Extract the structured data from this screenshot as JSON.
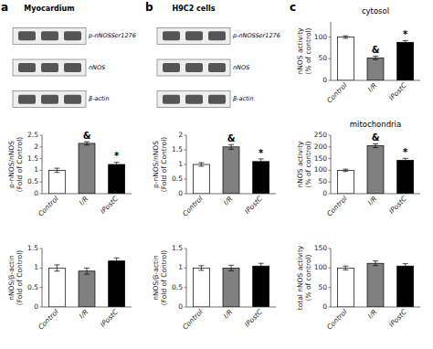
{
  "chart_data": [
    {
      "type": "blot",
      "title": "Myocardium",
      "categories": [
        "p-nNOSSer1276",
        "nNOS",
        "β-actin"
      ],
      "annotations": [
        {
          "text": "a"
        }
      ]
    },
    {
      "type": "blot",
      "title": "H9C2 cells",
      "categories": [
        "p-nNOSSer1276",
        "nNOS",
        "β-actin"
      ],
      "annotations": [
        {
          "text": "b"
        }
      ]
    },
    {
      "type": "bar",
      "categories": [
        "Control",
        "I/R",
        "IPostC"
      ],
      "values": [
        1.0,
        2.15,
        1.25
      ],
      "errors": [
        0.09,
        0.07,
        0.09
      ],
      "colors": [
        "white",
        "#808080",
        "black"
      ],
      "y_label": "p-nNOS/nNOS\n(Fold of Control)",
      "ylim": [
        0,
        2.5
      ],
      "yticks": [
        0,
        0.5,
        1,
        1.5,
        2,
        2.5
      ],
      "grid": false,
      "annotations": [
        {
          "text": "&",
          "x": "I/R"
        },
        {
          "text": "*",
          "x": "IPostC"
        }
      ]
    },
    {
      "type": "bar",
      "categories": [
        "Control",
        "I/R",
        "IPostC"
      ],
      "values": [
        1.0,
        0.92,
        1.18
      ],
      "errors": [
        0.08,
        0.08,
        0.08
      ],
      "colors": [
        "white",
        "#808080",
        "black"
      ],
      "y_label": "nNOS/β-actin\n(Fold of Control)",
      "ylim": [
        0,
        1.5
      ],
      "yticks": [
        0,
        0.5,
        1,
        1.5
      ],
      "grid": false
    },
    {
      "type": "bar",
      "categories": [
        "Control",
        "I/R",
        "IPostC"
      ],
      "values": [
        1.0,
        1.6,
        1.1
      ],
      "errors": [
        0.06,
        0.08,
        0.09
      ],
      "colors": [
        "white",
        "#808080",
        "black"
      ],
      "y_label": "p-nNOS/nNOS\n(Fold of Control)",
      "ylim": [
        0,
        2.0
      ],
      "yticks": [
        0,
        0.5,
        1,
        1.5,
        2
      ],
      "grid": false,
      "annotations": [
        {
          "text": "&",
          "x": "I/R"
        },
        {
          "text": "*",
          "x": "IPostC"
        }
      ]
    },
    {
      "type": "bar",
      "categories": [
        "Control",
        "I/R",
        "IPostC"
      ],
      "values": [
        1.0,
        1.0,
        1.05
      ],
      "errors": [
        0.06,
        0.07,
        0.07
      ],
      "colors": [
        "white",
        "#808080",
        "black"
      ],
      "y_label": "nNOS/β-actin\n(Fold of Control)",
      "ylim": [
        0,
        1.5
      ],
      "yticks": [
        0,
        0.5,
        1,
        1.5
      ],
      "grid": false
    },
    {
      "type": "bar",
      "title": "cytosol",
      "categories": [
        "Control",
        "I/R",
        "IPostC"
      ],
      "values": [
        100,
        52,
        88
      ],
      "errors": [
        3,
        4,
        4
      ],
      "colors": [
        "white",
        "#808080",
        "black"
      ],
      "y_label": "nNOS activity\n(% of control)",
      "ylim": [
        0,
        135
      ],
      "yticks": [
        0,
        50,
        100
      ],
      "grid": false,
      "annotations": [
        {
          "text": "c"
        },
        {
          "text": "&",
          "x": "I/R"
        },
        {
          "text": "*",
          "x": "IPostC"
        }
      ]
    },
    {
      "type": "bar",
      "title": "mitochondria",
      "categories": [
        "Control",
        "I/R",
        "IPostC"
      ],
      "values": [
        100,
        205,
        143
      ],
      "errors": [
        5,
        8,
        8
      ],
      "colors": [
        "white",
        "#808080",
        "black"
      ],
      "y_label": "nNOS activity\n(% of control)",
      "ylim": [
        0,
        250
      ],
      "yticks": [
        0,
        50,
        100,
        150,
        200,
        250
      ],
      "grid": false,
      "annotations": [
        {
          "text": "&",
          "x": "I/R"
        },
        {
          "text": "*",
          "x": "IPostC"
        }
      ]
    },
    {
      "type": "bar",
      "categories": [
        "Control",
        "I/R",
        "IPostC"
      ],
      "values": [
        100,
        112,
        105
      ],
      "errors": [
        5,
        6,
        6
      ],
      "colors": [
        "white",
        "#808080",
        "black"
      ],
      "y_label": "total nNOS activity\n(% of control)",
      "ylim": [
        0,
        150
      ],
      "yticks": [
        0,
        50,
        100,
        150
      ],
      "grid": false
    }
  ]
}
